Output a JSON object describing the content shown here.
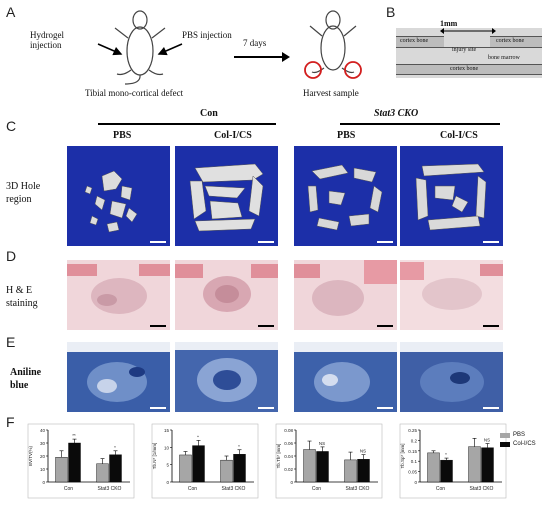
{
  "panels": {
    "A": {
      "letter": "A",
      "hydrogel": "Hydrogel injection",
      "pbs": "PBS injection",
      "defect": "Tibial mono-cortical defect",
      "days": "7 days",
      "harvest": "Harvest sample"
    },
    "B": {
      "letter": "B",
      "mm": "1mm",
      "cortex_left": "cortex bone",
      "cortex_right": "cortex bone",
      "injury": "injury site",
      "marrow": "bone marrow",
      "cortex_bottom": "cortex bone"
    },
    "C": {
      "letter": "C",
      "group_con": "Con",
      "group_ko": "Stat3 CKO",
      "col_pbs_1": "PBS",
      "col_colcs_1": "Col-I/CS",
      "col_pbs_2": "PBS",
      "col_colcs_2": "Col-I/CS",
      "row_label_1": "3D Hole",
      "row_label_2": "region"
    },
    "D": {
      "letter": "D",
      "row_label_1": "H & E",
      "row_label_2": "staining"
    },
    "E": {
      "letter": "E",
      "row_label_1": "Aniline",
      "row_label_2": "blue"
    },
    "F": {
      "letter": "F",
      "legend": [
        {
          "name": "PBS",
          "color": "#a6a6a6"
        },
        {
          "name": "Col-I/CS",
          "color": "#0a0a0a"
        }
      ]
    }
  },
  "colors": {
    "microct_bg": "#1c2fa8",
    "he_bg": "#f0d6da",
    "aniline_bg": "#3a5ea8"
  },
  "chart_data": [
    {
      "type": "bar",
      "categories": [
        "Con",
        "Stat3 CKO"
      ],
      "ylabel": "BV/TV(%)",
      "ylim": [
        0,
        40
      ],
      "yticks": [
        0,
        10,
        20,
        30,
        40
      ],
      "series": [
        {
          "name": "PBS",
          "values": [
            19,
            14
          ],
          "errors": [
            5,
            4
          ]
        },
        {
          "name": "Col-I/CS",
          "values": [
            30,
            21
          ],
          "errors": [
            3,
            3
          ]
        }
      ],
      "annotations": [
        "**",
        "*"
      ]
    },
    {
      "type": "bar",
      "categories": [
        "Con",
        "Stat3 CKO"
      ],
      "ylabel": "Tb.N* [1/mm]",
      "ylim": [
        0,
        15
      ],
      "yticks": [
        0,
        5,
        10,
        15
      ],
      "series": [
        {
          "name": "PBS",
          "values": [
            7.8,
            6.3
          ],
          "errors": [
            1,
            1.2
          ]
        },
        {
          "name": "Col-I/CS",
          "values": [
            10.5,
            8
          ],
          "errors": [
            1.5,
            1.3
          ]
        }
      ],
      "annotations": [
        "*",
        "*"
      ]
    },
    {
      "type": "bar",
      "categories": [
        "Con",
        "Stat3 CKO"
      ],
      "ylabel": "Tb.Th* [mm]",
      "ylim": [
        0,
        0.08
      ],
      "yticks": [
        0,
        0.02,
        0.04,
        0.06,
        0.08
      ],
      "series": [
        {
          "name": "PBS",
          "values": [
            0.05,
            0.034
          ],
          "errors": [
            0.013,
            0.012
          ]
        },
        {
          "name": "Col-I/CS",
          "values": [
            0.047,
            0.035
          ],
          "errors": [
            0.007,
            0.007
          ]
        }
      ],
      "annotations": [
        "NS",
        "NS"
      ]
    },
    {
      "type": "bar",
      "categories": [
        "Con",
        "Stat3 CKO"
      ],
      "ylabel": "Tb.Sp* [mm]",
      "ylim": [
        0,
        0.25
      ],
      "yticks": [
        0,
        0.05,
        0.1,
        0.15,
        0.2,
        0.25
      ],
      "series": [
        {
          "name": "PBS",
          "values": [
            0.14,
            0.17
          ],
          "errors": [
            0.01,
            0.04
          ]
        },
        {
          "name": "Col-I/CS",
          "values": [
            0.105,
            0.165
          ],
          "errors": [
            0.01,
            0.02
          ]
        }
      ],
      "annotations": [
        "*",
        "NS"
      ]
    }
  ]
}
